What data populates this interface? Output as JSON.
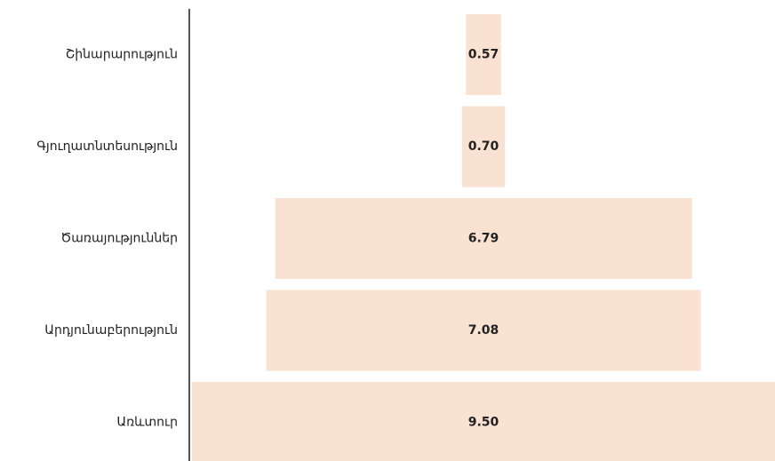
{
  "chart_data": {
    "type": "bar",
    "orientation": "horizontal",
    "style": "funnel",
    "title": "",
    "xlabel": "",
    "ylabel": "",
    "categories": [
      "Շինարարություն",
      "Գյուղատնտեսություն",
      "Ծառայություններ",
      "Արդյունաբերություն",
      "Առևտուր"
    ],
    "values": [
      0.57,
      0.7,
      6.79,
      7.08,
      9.5
    ],
    "value_labels": [
      "0.57",
      "0.70",
      "6.79",
      "7.08",
      "9.50"
    ],
    "xlim": [
      0,
      9.5
    ],
    "grid": false,
    "legend": "none",
    "colors": {
      "bar": "#f9e2d2",
      "axis": "#555555",
      "text": "#222222"
    }
  }
}
